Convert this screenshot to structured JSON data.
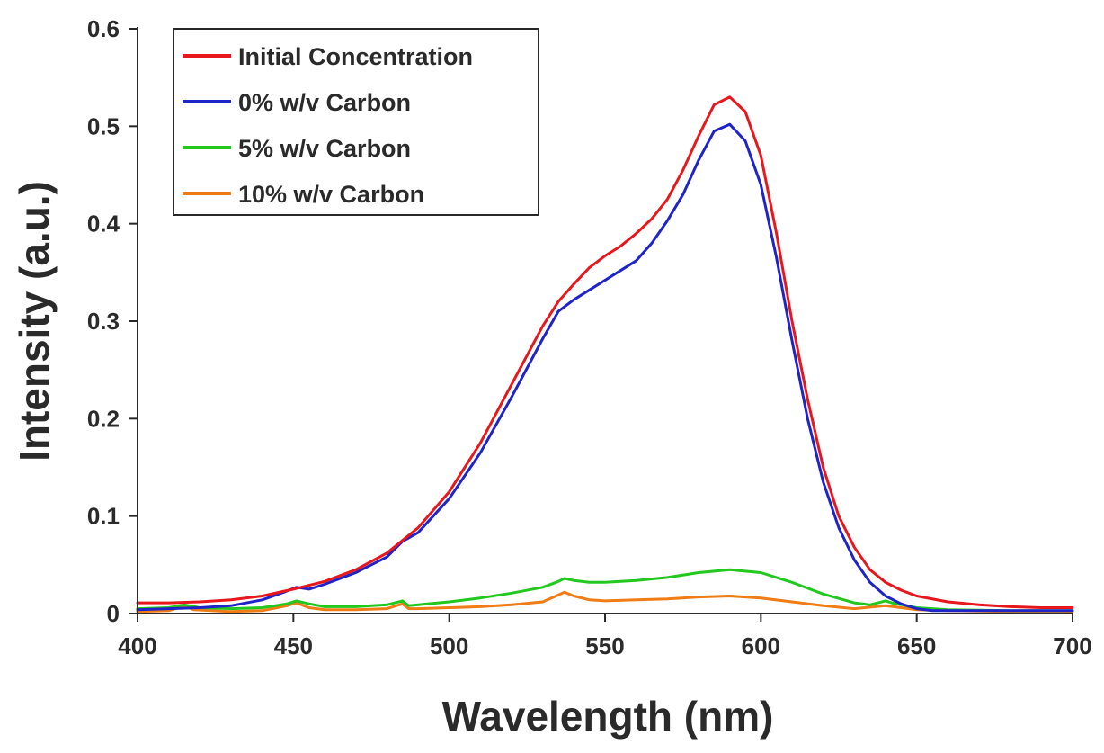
{
  "chart_data": {
    "type": "line",
    "title": "",
    "xlabel": "Wavelength (nm)",
    "ylabel": "Intensity (a.u.)",
    "xlim": [
      400,
      700
    ],
    "ylim": [
      0,
      0.6
    ],
    "x_ticks": [
      "400",
      "450",
      "500",
      "550",
      "600",
      "650",
      "700"
    ],
    "y_ticks": [
      "0",
      "0.1",
      "0.2",
      "0.3",
      "0.4",
      "0.5",
      "0.6"
    ],
    "grid": false,
    "legend_position": "top-left",
    "series": [
      {
        "name": "Initial Concentration",
        "color": "#e8171b",
        "points": [
          [
            400,
            0.011
          ],
          [
            410,
            0.011
          ],
          [
            420,
            0.012
          ],
          [
            430,
            0.014
          ],
          [
            440,
            0.018
          ],
          [
            450,
            0.025
          ],
          [
            460,
            0.033
          ],
          [
            470,
            0.045
          ],
          [
            480,
            0.062
          ],
          [
            490,
            0.088
          ],
          [
            500,
            0.125
          ],
          [
            510,
            0.175
          ],
          [
            520,
            0.235
          ],
          [
            530,
            0.295
          ],
          [
            535,
            0.32
          ],
          [
            540,
            0.338
          ],
          [
            545,
            0.355
          ],
          [
            550,
            0.367
          ],
          [
            555,
            0.377
          ],
          [
            560,
            0.39
          ],
          [
            565,
            0.405
          ],
          [
            570,
            0.425
          ],
          [
            575,
            0.455
          ],
          [
            580,
            0.49
          ],
          [
            585,
            0.522
          ],
          [
            590,
            0.53
          ],
          [
            595,
            0.515
          ],
          [
            600,
            0.47
          ],
          [
            605,
            0.39
          ],
          [
            610,
            0.3
          ],
          [
            615,
            0.22
          ],
          [
            620,
            0.15
          ],
          [
            625,
            0.1
          ],
          [
            630,
            0.068
          ],
          [
            635,
            0.045
          ],
          [
            640,
            0.032
          ],
          [
            645,
            0.024
          ],
          [
            650,
            0.018
          ],
          [
            660,
            0.012
          ],
          [
            670,
            0.009
          ],
          [
            680,
            0.007
          ],
          [
            690,
            0.006
          ],
          [
            700,
            0.006
          ]
        ]
      },
      {
        "name": "0% w/v Carbon",
        "color": "#1f24c9",
        "points": [
          [
            400,
            0.004
          ],
          [
            410,
            0.005
          ],
          [
            420,
            0.006
          ],
          [
            430,
            0.008
          ],
          [
            440,
            0.014
          ],
          [
            447,
            0.022
          ],
          [
            451,
            0.027
          ],
          [
            455,
            0.025
          ],
          [
            460,
            0.03
          ],
          [
            470,
            0.042
          ],
          [
            480,
            0.058
          ],
          [
            485,
            0.074
          ],
          [
            490,
            0.083
          ],
          [
            500,
            0.118
          ],
          [
            510,
            0.165
          ],
          [
            520,
            0.222
          ],
          [
            530,
            0.282
          ],
          [
            535,
            0.31
          ],
          [
            540,
            0.322
          ],
          [
            545,
            0.332
          ],
          [
            550,
            0.342
          ],
          [
            555,
            0.352
          ],
          [
            560,
            0.362
          ],
          [
            565,
            0.38
          ],
          [
            570,
            0.403
          ],
          [
            575,
            0.43
          ],
          [
            580,
            0.465
          ],
          [
            585,
            0.495
          ],
          [
            590,
            0.502
          ],
          [
            595,
            0.485
          ],
          [
            600,
            0.44
          ],
          [
            605,
            0.365
          ],
          [
            610,
            0.28
          ],
          [
            615,
            0.2
          ],
          [
            620,
            0.135
          ],
          [
            625,
            0.088
          ],
          [
            630,
            0.055
          ],
          [
            635,
            0.032
          ],
          [
            640,
            0.018
          ],
          [
            645,
            0.01
          ],
          [
            650,
            0.005
          ],
          [
            655,
            0.003
          ],
          [
            665,
            0.003
          ],
          [
            700,
            0.003
          ]
        ]
      },
      {
        "name": "5% w/v Carbon",
        "color": "#22c81e",
        "points": [
          [
            400,
            0.005
          ],
          [
            410,
            0.006
          ],
          [
            415,
            0.009
          ],
          [
            420,
            0.006
          ],
          [
            430,
            0.005
          ],
          [
            440,
            0.006
          ],
          [
            448,
            0.01
          ],
          [
            451,
            0.013
          ],
          [
            455,
            0.01
          ],
          [
            460,
            0.007
          ],
          [
            470,
            0.007
          ],
          [
            480,
            0.009
          ],
          [
            485,
            0.013
          ],
          [
            487,
            0.008
          ],
          [
            490,
            0.009
          ],
          [
            500,
            0.012
          ],
          [
            510,
            0.016
          ],
          [
            520,
            0.021
          ],
          [
            530,
            0.027
          ],
          [
            535,
            0.033
          ],
          [
            537,
            0.036
          ],
          [
            540,
            0.034
          ],
          [
            545,
            0.032
          ],
          [
            550,
            0.032
          ],
          [
            560,
            0.034
          ],
          [
            570,
            0.037
          ],
          [
            580,
            0.042
          ],
          [
            590,
            0.045
          ],
          [
            600,
            0.042
          ],
          [
            610,
            0.032
          ],
          [
            620,
            0.02
          ],
          [
            630,
            0.011
          ],
          [
            635,
            0.009
          ],
          [
            640,
            0.013
          ],
          [
            642,
            0.011
          ],
          [
            650,
            0.006
          ],
          [
            660,
            0.004
          ],
          [
            680,
            0.003
          ],
          [
            700,
            0.003
          ]
        ]
      },
      {
        "name": "10% w/v Carbon",
        "color": "#f07c16",
        "points": [
          [
            400,
            0.002
          ],
          [
            410,
            0.003
          ],
          [
            415,
            0.008
          ],
          [
            418,
            0.004
          ],
          [
            430,
            0.002
          ],
          [
            440,
            0.003
          ],
          [
            448,
            0.008
          ],
          [
            451,
            0.011
          ],
          [
            455,
            0.006
          ],
          [
            460,
            0.004
          ],
          [
            470,
            0.004
          ],
          [
            480,
            0.005
          ],
          [
            485,
            0.01
          ],
          [
            487,
            0.005
          ],
          [
            490,
            0.005
          ],
          [
            500,
            0.006
          ],
          [
            510,
            0.007
          ],
          [
            520,
            0.009
          ],
          [
            530,
            0.012
          ],
          [
            535,
            0.019
          ],
          [
            537,
            0.022
          ],
          [
            540,
            0.018
          ],
          [
            545,
            0.014
          ],
          [
            550,
            0.013
          ],
          [
            560,
            0.014
          ],
          [
            570,
            0.015
          ],
          [
            580,
            0.017
          ],
          [
            590,
            0.018
          ],
          [
            600,
            0.016
          ],
          [
            610,
            0.012
          ],
          [
            620,
            0.008
          ],
          [
            630,
            0.005
          ],
          [
            640,
            0.008
          ],
          [
            645,
            0.006
          ],
          [
            650,
            0.004
          ],
          [
            660,
            0.003
          ],
          [
            680,
            0.002
          ],
          [
            700,
            0.002
          ]
        ]
      }
    ]
  }
}
